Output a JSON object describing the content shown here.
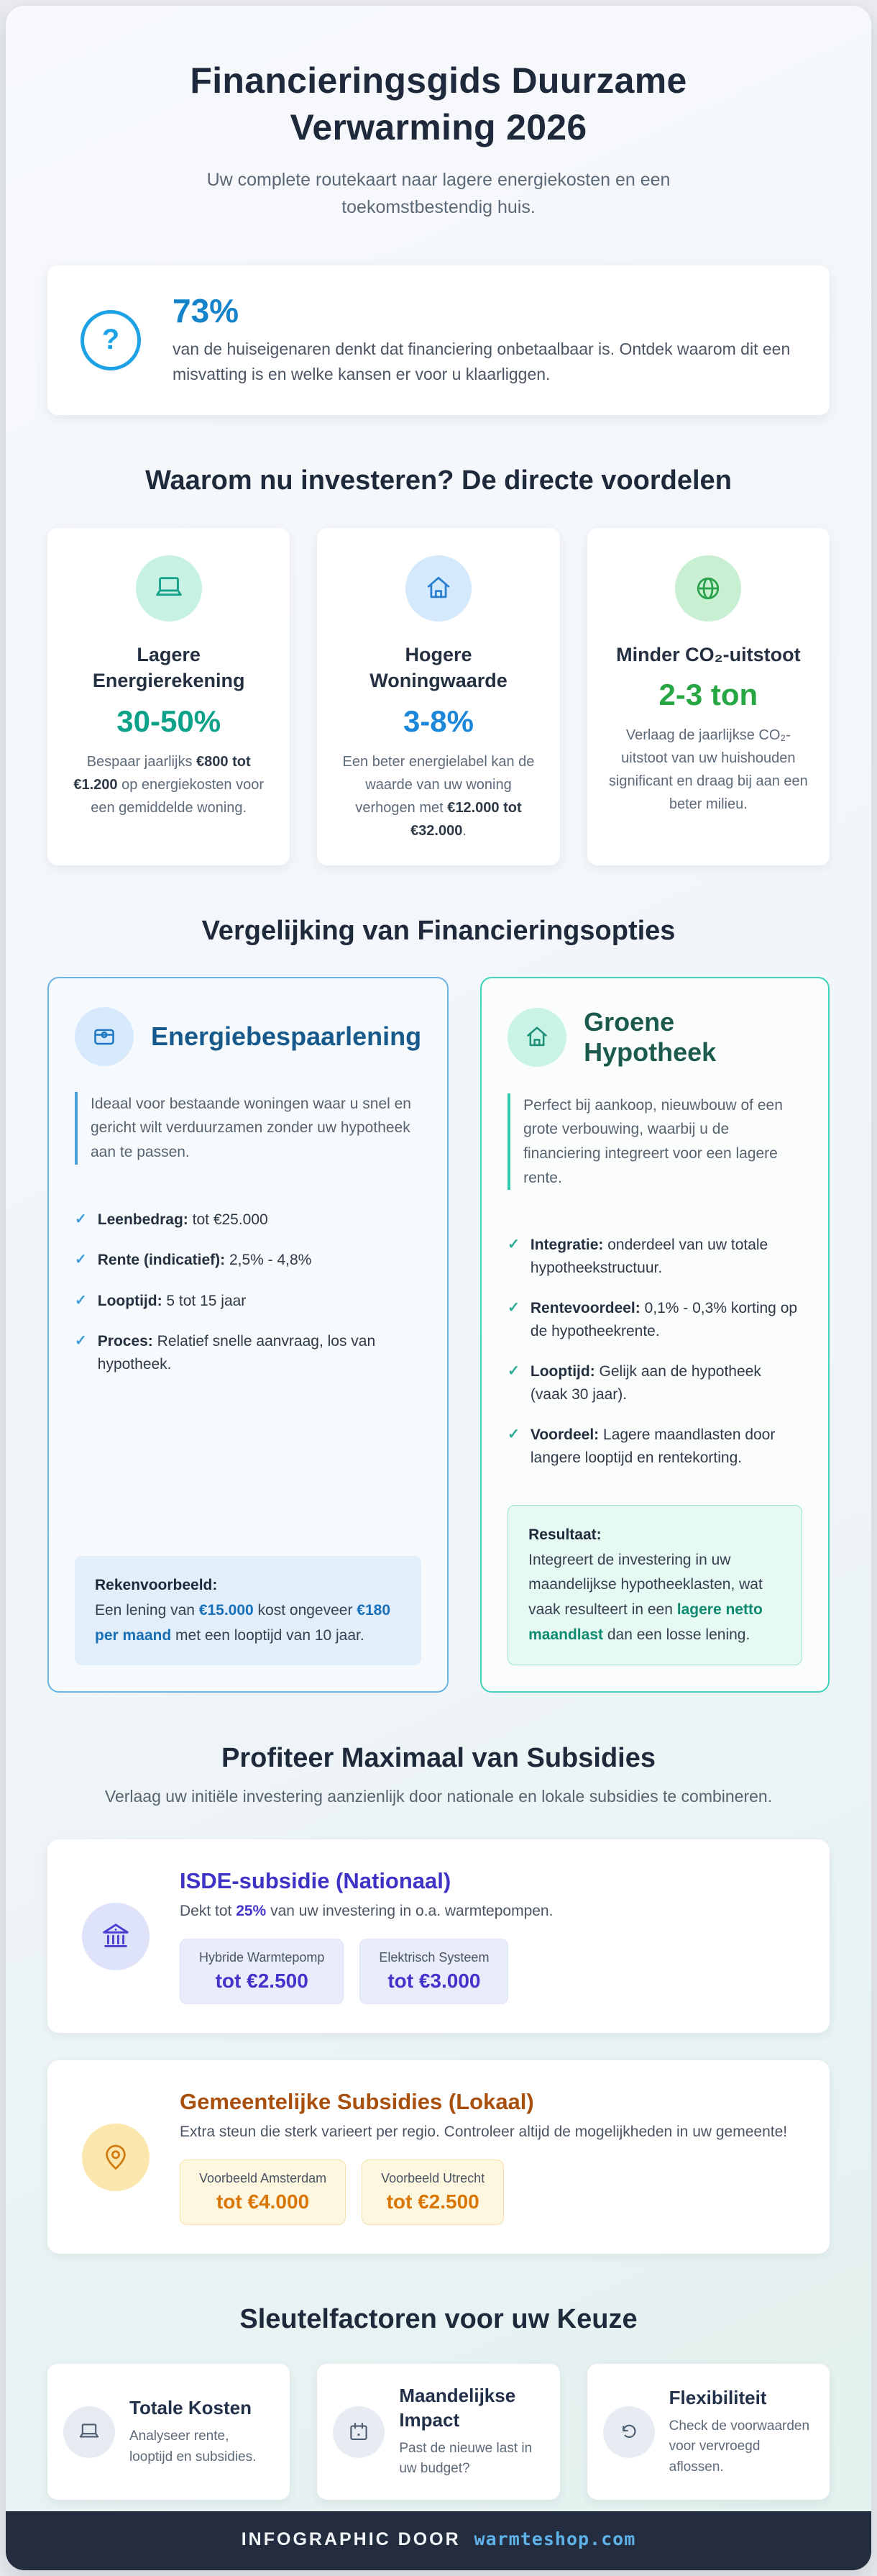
{
  "header": {
    "title": "Financieringsgids Duurzame Verwarming 2026",
    "subtitle": "Uw complete routekaart naar lagere energiekosten en een toekomstbestendig huis."
  },
  "stat_box": {
    "icon_glyph": "?",
    "accent": "#1ea2e6",
    "value": "73%",
    "text": "van de huiseigenaren denkt dat financiering onbetaalbaar is. Ontdek waarom dit een misvatting is en welke kansen er voor u klaarliggen."
  },
  "benefits": {
    "heading": "Waarom nu investeren? De directe voordelen",
    "cards": [
      {
        "icon": "monitor-icon",
        "title": "Lagere Energierekening",
        "stat": "30-50%",
        "stat_color": "#0da189",
        "desc": [
          {
            "t": "Bespaar jaarlijks "
          },
          {
            "t": "€800 tot €1.200",
            "b": true,
            "c": "#2e3947"
          },
          {
            "t": " op energiekosten voor een gemiddelde woning."
          }
        ]
      },
      {
        "icon": "home-icon",
        "title": "Hogere Woningwaarde",
        "stat": "3-8%",
        "stat_color": "#1c86d8",
        "desc": [
          {
            "t": "Een beter energielabel kan de waarde van uw woning verhogen met "
          },
          {
            "t": "€12.000 tot €32.000",
            "b": true,
            "c": "#2e3947"
          },
          {
            "t": "."
          }
        ]
      },
      {
        "icon": "globe-icon",
        "title": "Minder CO₂-uitstoot",
        "stat": "2-3 ton",
        "stat_color": "#27a744",
        "desc": [
          {
            "t": "Verlaag de jaarlijkse CO₂-uitstoot van uw huishouden significant en draag bij aan een beter milieu."
          }
        ]
      }
    ]
  },
  "comparison": {
    "heading": "Vergelijking van Financieringsopties",
    "check_glyph": "✓",
    "left": {
      "icon": "wallet-icon",
      "title": "Energiebespaarlening",
      "accent": "#4aa0d8",
      "intro": "Ideaal voor bestaande woningen waar u snel en gericht wilt verduurzamen zonder uw hypotheek aan te passen.",
      "items": [
        [
          {
            "t": "Leenbedrag:",
            "b": true,
            "c": "#24303f"
          },
          {
            "t": " tot €25.000"
          }
        ],
        [
          {
            "t": "Rente (indicatief):",
            "b": true,
            "c": "#24303f"
          },
          {
            "t": " 2,5% - 4,8%"
          }
        ],
        [
          {
            "t": "Looptijd:",
            "b": true,
            "c": "#24303f"
          },
          {
            "t": " 5 tot 15 jaar"
          }
        ],
        [
          {
            "t": "Proces:",
            "b": true,
            "c": "#24303f"
          },
          {
            "t": " Relatief snelle aanvraag, los van hypotheek."
          }
        ]
      ],
      "note_title": "Rekenvoorbeeld:",
      "note": [
        {
          "t": "Een lening van "
        },
        {
          "t": "€15.000",
          "b": true,
          "c": "#176fb8"
        },
        {
          "t": " kost ongeveer "
        },
        {
          "t": "€180 per maand",
          "b": true,
          "c": "#176fb8"
        },
        {
          "t": " met een looptijd van 10 jaar."
        }
      ]
    },
    "right": {
      "icon": "home-icon",
      "title": "Groene Hypotheek",
      "accent": "#2fc9ae",
      "intro": "Perfect bij aankoop, nieuwbouw of een grote verbouwing, waarbij u de financiering integreert voor een lagere rente.",
      "items": [
        [
          {
            "t": "Integratie:",
            "b": true,
            "c": "#24303f"
          },
          {
            "t": " onderdeel van uw totale hypotheekstructuur."
          }
        ],
        [
          {
            "t": "Rentevoordeel:",
            "b": true,
            "c": "#24303f"
          },
          {
            "t": " 0,1% - 0,3% korting op de hypotheekrente."
          }
        ],
        [
          {
            "t": "Looptijd:",
            "b": true,
            "c": "#24303f"
          },
          {
            "t": " Gelijk aan de hypotheek (vaak 30 jaar)."
          }
        ],
        [
          {
            "t": "Voordeel:",
            "b": true,
            "c": "#24303f"
          },
          {
            "t": " Lagere maandlasten door langere looptijd en rentekorting."
          }
        ]
      ],
      "note_title": "Resultaat:",
      "note": [
        {
          "t": "Integreert de investering in uw maandelijkse hypotheeklasten, wat vaak resulteert in een "
        },
        {
          "t": "lagere netto maandlast",
          "b": true,
          "c": "#0e8a70"
        },
        {
          "t": " dan een losse lening."
        }
      ]
    }
  },
  "subsidies": {
    "heading": "Profiteer Maximaal van Subsidies",
    "subtitle": "Verlaag uw initiële investering aanzienlijk door nationale en lokale subsidies te combineren.",
    "isde": {
      "icon": "bank-icon",
      "title": "ISDE-subsidie (Nationaal)",
      "desc": [
        {
          "t": "Dekt tot "
        },
        {
          "t": "25%",
          "b": true,
          "c": "#4338ca"
        },
        {
          "t": " van uw investering in o.a. warmtepompen."
        }
      ],
      "chips": [
        {
          "label": "Hybride Warmtepomp",
          "amount": "tot €2.500"
        },
        {
          "label": "Elektrisch Systeem",
          "amount": "tot €3.000"
        }
      ]
    },
    "local": {
      "icon": "map-pin-icon",
      "title": "Gemeentelijke Subsidies (Lokaal)",
      "desc": [
        {
          "t": "Extra steun die sterk varieert per regio. Controleer altijd de mogelijkheden in uw gemeente!"
        }
      ],
      "chips": [
        {
          "label": "Voorbeeld Amsterdam",
          "amount": "tot €4.000"
        },
        {
          "label": "Voorbeeld Utrecht",
          "amount": "tot €2.500"
        }
      ]
    }
  },
  "factors": {
    "heading": "Sleutelfactoren voor uw Keuze",
    "cards": [
      {
        "icon": "monitor-icon",
        "title": "Totale Kosten",
        "text": "Analyseer rente, looptijd en subsidies."
      },
      {
        "icon": "calendar-icon",
        "title": "Maandelijkse Impact",
        "text": "Past de nieuwe last in uw budget?"
      },
      {
        "icon": "undo-arrow-icon",
        "title": "Flexibiliteit",
        "text": "Check de voorwaarden voor vervroegd aflossen."
      }
    ]
  },
  "footer": {
    "prefix": "INFOGRAPHIC DOOR",
    "brand": "warmteshop.com",
    "bg": "#232d3f",
    "brand_color": "#5fb2e8"
  }
}
